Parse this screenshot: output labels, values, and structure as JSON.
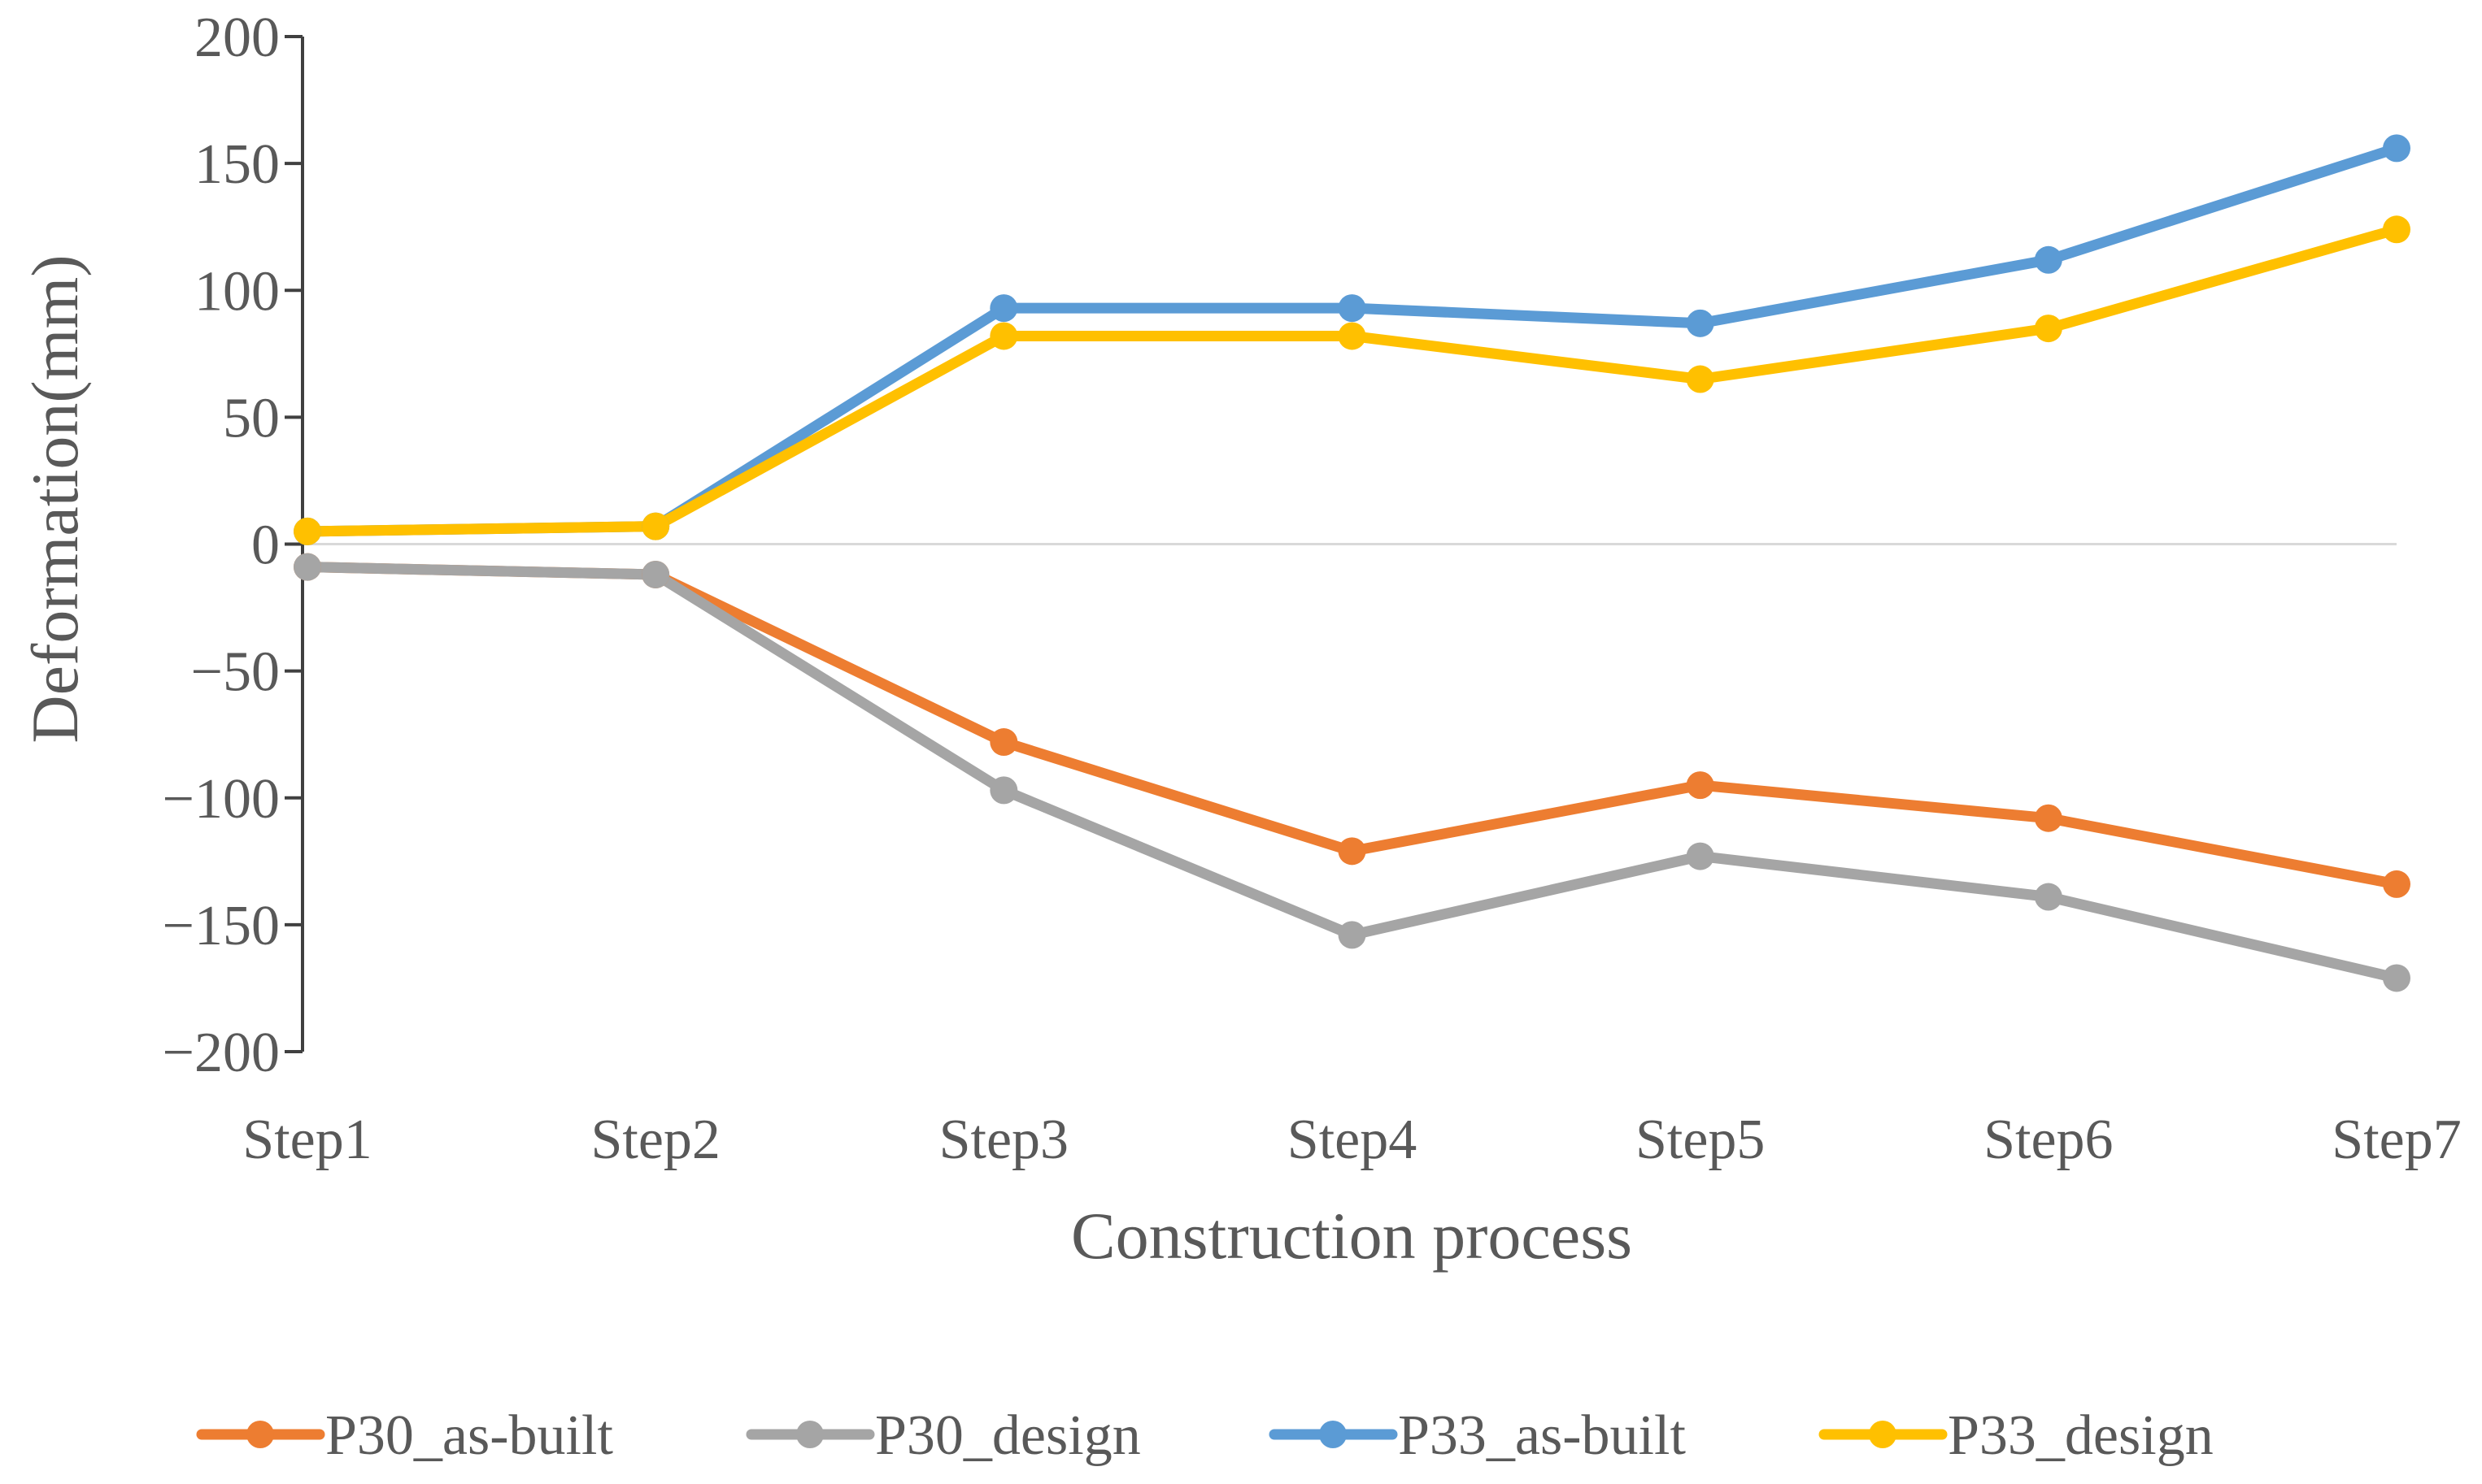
{
  "chart_data": {
    "type": "line",
    "title": "",
    "xlabel": "Construction process",
    "ylabel": "Deformation(mm)",
    "categories": [
      "Step1",
      "Step2",
      "Step3",
      "Step4",
      "Step5",
      "Step6",
      "Step7"
    ],
    "ylim": [
      -200,
      200
    ],
    "yticks": [
      200,
      150,
      100,
      50,
      0,
      -50,
      -100,
      -150,
      -200
    ],
    "ytick_labels": [
      "200",
      "150",
      "100",
      "50",
      "0",
      "−50",
      "−100",
      "−150",
      "−200"
    ],
    "grid": false,
    "zero_line": true,
    "legend_position": "bottom",
    "series": [
      {
        "name": "P30_as-built",
        "color": "#ED7D31",
        "values": [
          -9,
          -12,
          -78,
          -121,
          -95,
          -108,
          -134
        ]
      },
      {
        "name": "P30_design",
        "color": "#A5A5A5",
        "values": [
          -9,
          -12,
          -97,
          -154,
          -123,
          -139,
          -171
        ]
      },
      {
        "name": "P33_as-built",
        "color": "#5B9BD5",
        "values": [
          5,
          7,
          93,
          93,
          87,
          112,
          156
        ]
      },
      {
        "name": "P33_design",
        "color": "#FFC000",
        "values": [
          5,
          7,
          82,
          82,
          65,
          85,
          124
        ]
      }
    ]
  }
}
